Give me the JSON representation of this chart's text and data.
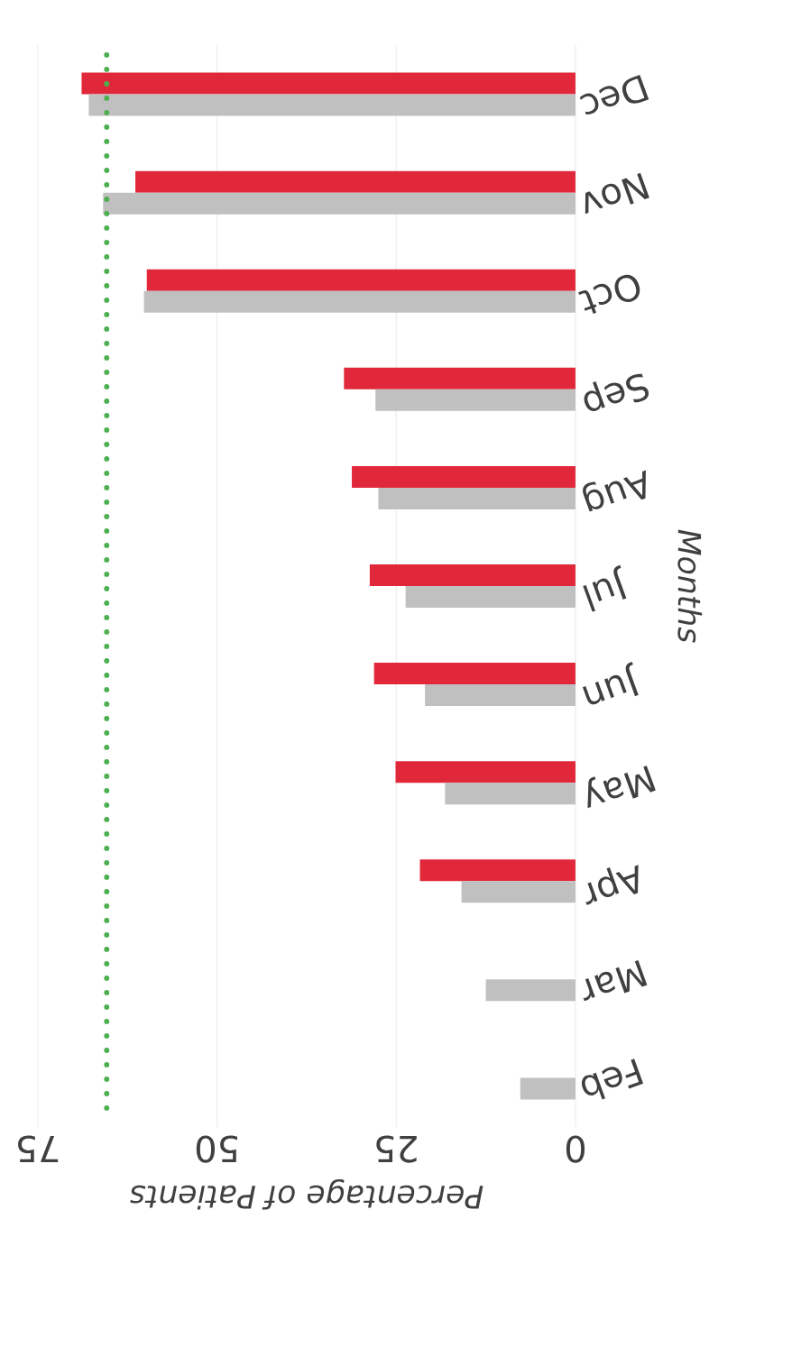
{
  "chart_data": {
    "type": "bar",
    "orientation": "horizontal",
    "xlabel": "Percentage of Patients",
    "ylabel": "Months",
    "categories": [
      "Dec",
      "Nov",
      "Oct",
      "Sep",
      "Aug",
      "Jul",
      "Jun",
      "May",
      "Apr",
      "Mar",
      "Feb"
    ],
    "series": [
      {
        "color": "#e0283a",
        "values": [
          68.9,
          61.4,
          59.8,
          32.3,
          31.2,
          28.7,
          28.1,
          25.1,
          21.7,
          null,
          null
        ]
      },
      {
        "color": "#c0c0c0",
        "values": [
          67.9,
          65.9,
          60.2,
          27.9,
          27.5,
          23.7,
          21.0,
          18.2,
          15.9,
          12.5,
          7.7
        ]
      }
    ],
    "xlim": [
      75,
      0
    ],
    "xticks": [
      75,
      50,
      25,
      0
    ],
    "grid": "x",
    "ref_lines": [
      {
        "axis": "x",
        "value": 65.4,
        "color": "#4caf50",
        "line_style": "dotted"
      }
    ]
  }
}
